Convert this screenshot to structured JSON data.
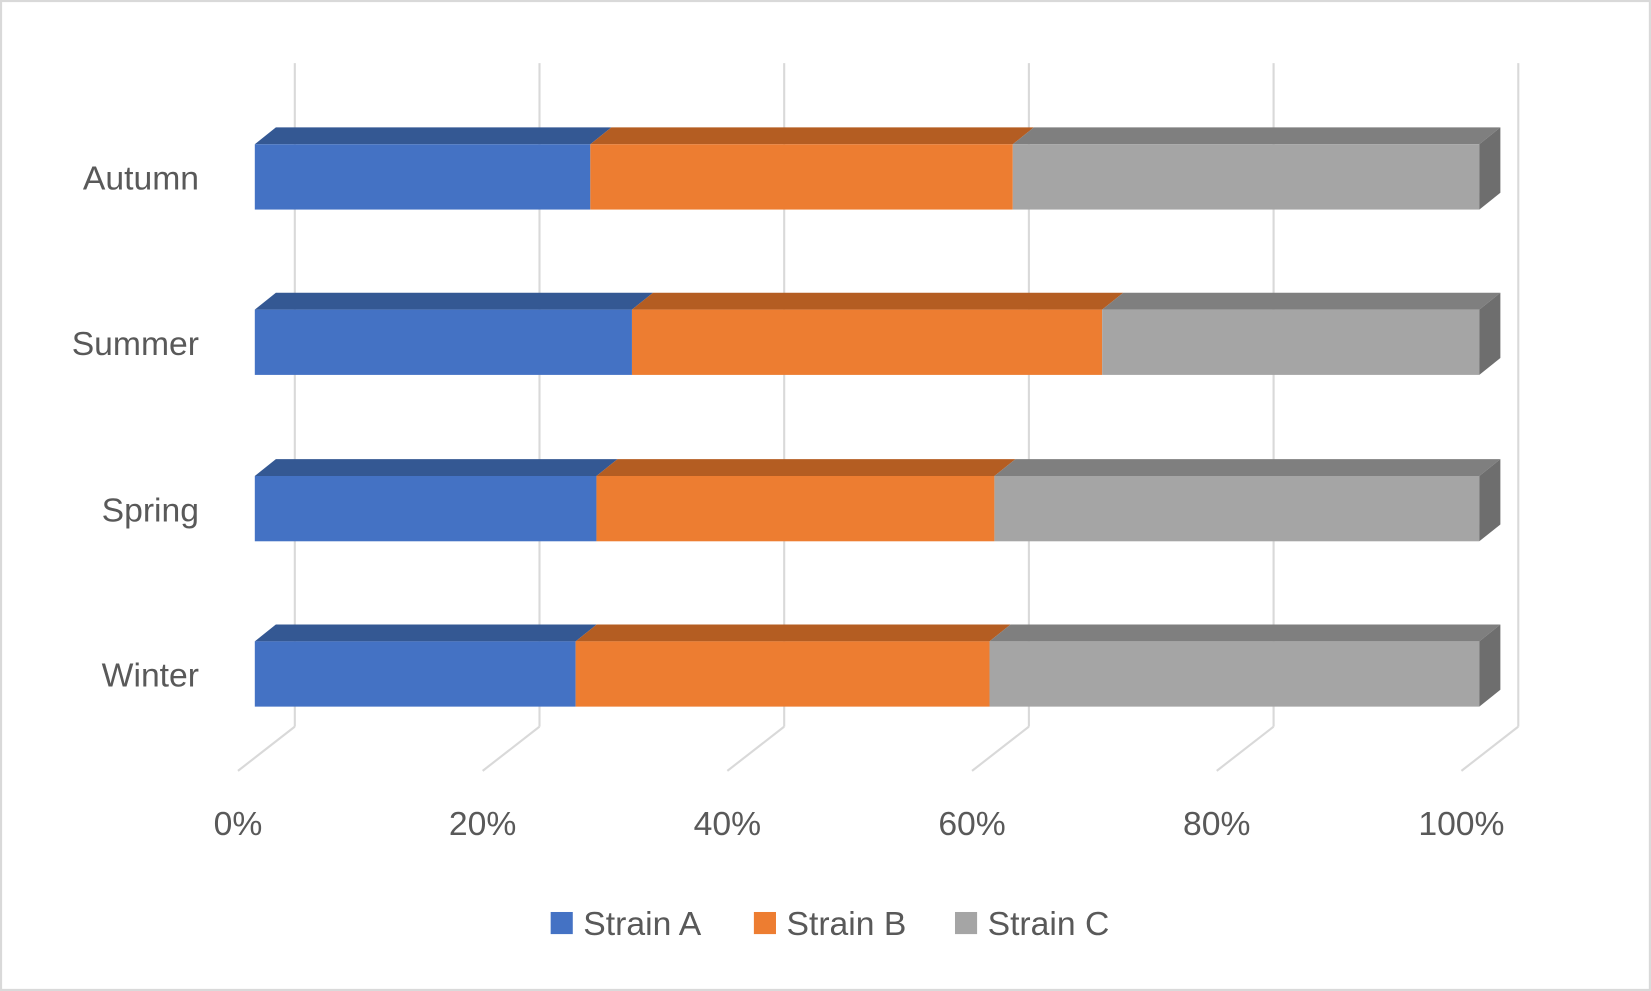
{
  "chart_data": {
    "type": "bar",
    "orientation": "horizontal",
    "stacked": "percent",
    "style": "3d",
    "title": "",
    "xlabel": "",
    "ylabel": "",
    "categories": [
      "Winter",
      "Spring",
      "Summer",
      "Autumn"
    ],
    "series": [
      {
        "name": "Strain A",
        "color": "#4472C4",
        "top_color": "#345893",
        "values": [
          26.2,
          27.9,
          30.8,
          27.4
        ]
      },
      {
        "name": "Strain B",
        "color": "#ED7D31",
        "top_color": "#B45D22",
        "values": [
          33.8,
          32.5,
          38.4,
          34.5
        ]
      },
      {
        "name": "Strain C",
        "color": "#A5A5A5",
        "top_color": "#7F7F7F",
        "values": [
          40.0,
          39.6,
          30.8,
          38.1
        ]
      }
    ],
    "xlim": [
      0,
      100
    ],
    "x_ticks": [
      "0%",
      "20%",
      "40%",
      "60%",
      "80%",
      "100%"
    ],
    "grid": true,
    "legend_position": "bottom"
  }
}
